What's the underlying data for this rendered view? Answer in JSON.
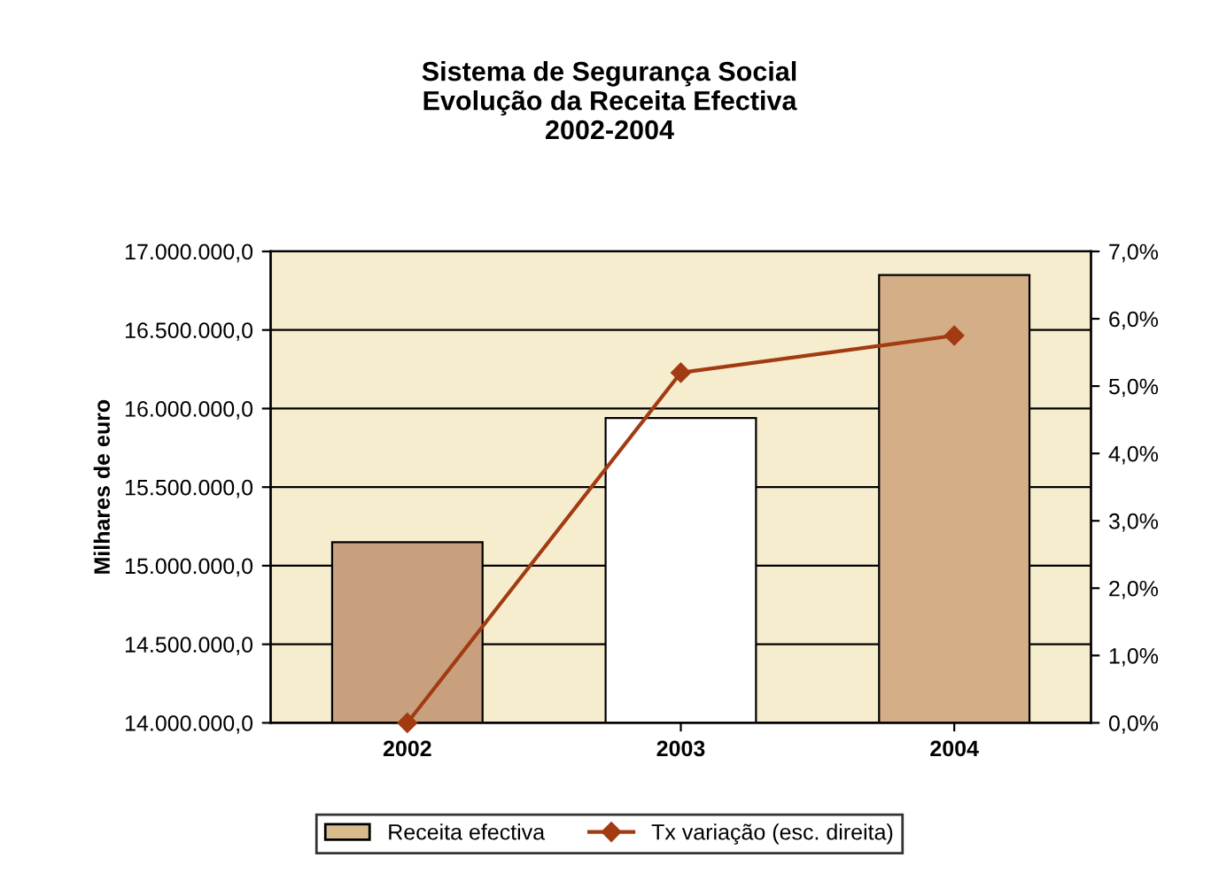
{
  "chart_data": {
    "type": "bar",
    "title": "Sistema de Segurança Social\nEvolução da Receita Efectiva\n2002-2004",
    "ylabel": "Milhares de euro",
    "categories": [
      "2002",
      "2003",
      "2004"
    ],
    "series": [
      {
        "name": "Receita efectiva",
        "colors": [
          "#c9a07e",
          "#ffffff",
          "#d4ae86"
        ],
        "color": "#d9bc8c",
        "values": [
          15150000,
          15940000,
          16850000
        ]
      },
      {
        "name": "Tx variação (esc. direita)",
        "type": "line",
        "axis": "y2",
        "color": "#a23b12",
        "values": [
          0.0,
          5.2,
          5.75
        ],
        "marker": "diamond"
      }
    ],
    "ylim": [
      14000000,
      17000000
    ],
    "yticks": [
      {
        "value": 14000000,
        "label": "14.000.000,0"
      },
      {
        "value": 14500000,
        "label": "14.500.000,0"
      },
      {
        "value": 15000000,
        "label": "15.000.000,0"
      },
      {
        "value": 15500000,
        "label": "15.500.000,0"
      },
      {
        "value": 16000000,
        "label": "16.000.000,0"
      },
      {
        "value": 16500000,
        "label": "16.500.000,0"
      },
      {
        "value": 17000000,
        "label": "17.000.000,0"
      }
    ],
    "y2lim": [
      0,
      7
    ],
    "y2ticks": [
      {
        "value": 0,
        "label": "0,0%"
      },
      {
        "value": 1,
        "label": "1,0%"
      },
      {
        "value": 2,
        "label": "2,0%"
      },
      {
        "value": 3,
        "label": "3,0%"
      },
      {
        "value": 4,
        "label": "4,0%"
      },
      {
        "value": 5,
        "label": "5,0%"
      },
      {
        "value": 6,
        "label": "6,0%"
      },
      {
        "value": 7,
        "label": "7,0%"
      }
    ],
    "grid": "y",
    "legend": "bottom"
  }
}
